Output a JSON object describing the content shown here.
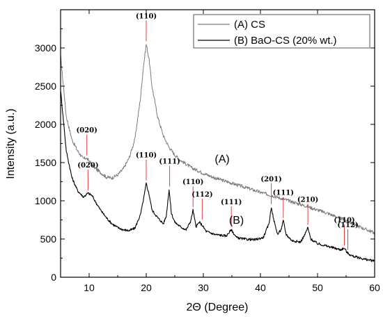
{
  "chart_data": {
    "type": "line",
    "xlabel": "2Θ (Degree)",
    "ylabel": "Intensity (a.u.)",
    "xlim": [
      5,
      60
    ],
    "ylim": [
      0,
      3500
    ],
    "xticks": [
      10,
      20,
      30,
      40,
      50,
      60
    ],
    "yticks": [
      0,
      500,
      1000,
      1500,
      2000,
      2500,
      3000
    ],
    "legend_position": "top-right",
    "series": [
      {
        "name": "(A) CS",
        "color": "#7a7a7a",
        "x": [
          5,
          6,
          7,
          8,
          9,
          9.5,
          10,
          11,
          12,
          13,
          14,
          15,
          16,
          17,
          18,
          19,
          19.5,
          20,
          20.5,
          21,
          22,
          23,
          24,
          25,
          26,
          28,
          30,
          32,
          35,
          38,
          40,
          42,
          45,
          48,
          50,
          52,
          55,
          58,
          60
        ],
        "y": [
          2900,
          2100,
          1800,
          1650,
          1550,
          1560,
          1520,
          1430,
          1370,
          1310,
          1300,
          1340,
          1420,
          1560,
          1800,
          2350,
          2750,
          3050,
          2850,
          2500,
          2100,
          1850,
          1700,
          1600,
          1530,
          1430,
          1360,
          1300,
          1230,
          1160,
          1110,
          1070,
          1000,
          930,
          880,
          830,
          740,
          640,
          580
        ]
      },
      {
        "name": "(B) BaO-CS (20% wt.)",
        "color": "#000000",
        "x": [
          5,
          6,
          7,
          8,
          9,
          9.8,
          10.5,
          11,
          12,
          13,
          14,
          15,
          16,
          17,
          18,
          19,
          19.6,
          20,
          20.6,
          21,
          22,
          23,
          23.5,
          24,
          24.4,
          25,
          26,
          27,
          27.8,
          28.2,
          28.7,
          29.3,
          29.8,
          30.5,
          32,
          34,
          34.9,
          35.8,
          37,
          39,
          40.5,
          41.5,
          41.9,
          42.3,
          43,
          43.6,
          44,
          44.5,
          45.5,
          47,
          47.8,
          48.3,
          48.8,
          50,
          52,
          54,
          54.7,
          55.2,
          56,
          58,
          60
        ],
        "y": [
          2450,
          1650,
          1300,
          1130,
          1050,
          1100,
          1070,
          1000,
          880,
          780,
          700,
          650,
          620,
          610,
          640,
          820,
          1050,
          1230,
          1050,
          880,
          780,
          700,
          800,
          1150,
          840,
          720,
          660,
          620,
          740,
          880,
          660,
          720,
          680,
          600,
          560,
          540,
          620,
          520,
          500,
          490,
          520,
          700,
          920,
          760,
          560,
          620,
          740,
          560,
          480,
          460,
          560,
          650,
          500,
          440,
          400,
          360,
          380,
          320,
          280,
          240,
          210
        ]
      }
    ],
    "peak_labels": [
      {
        "label": "(110)",
        "x": 20,
        "y": 3050
      },
      {
        "label": "(020)",
        "x": 9.6,
        "y": 1560
      },
      {
        "label": "(020)",
        "x": 9.8,
        "y": 1100
      },
      {
        "label": "(110)",
        "x": 20,
        "y": 1230
      },
      {
        "label": "(111)",
        "x": 24.1,
        "y": 1150
      },
      {
        "label": "(110)",
        "x": 28.2,
        "y": 880
      },
      {
        "label": "(112)",
        "x": 29.8,
        "y": 720
      },
      {
        "label": "(111)",
        "x": 34.9,
        "y": 620
      },
      {
        "label": "(201)",
        "x": 41.9,
        "y": 920
      },
      {
        "label": "(111)",
        "x": 44,
        "y": 740
      },
      {
        "label": "(210)",
        "x": 48.3,
        "y": 650
      },
      {
        "label": "(110)",
        "x": 54.7,
        "y": 380
      },
      {
        "label": "(112)",
        "x": 55.3,
        "y": 320
      }
    ],
    "curve_labels": [
      {
        "text": "(A)",
        "x": 32,
        "y": 1500
      },
      {
        "text": "(B)",
        "x": 34.5,
        "y": 700
      }
    ]
  }
}
